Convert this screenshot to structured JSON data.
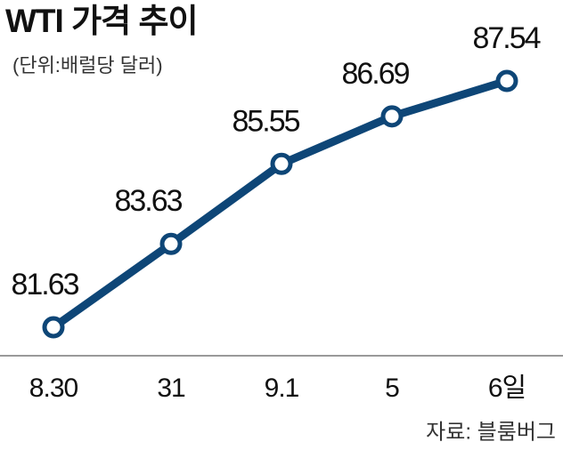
{
  "chart_data": {
    "type": "line",
    "title": "WTI 가격 추이",
    "subtitle": "(단위:배럴당 달러)",
    "source": "자료: 블룸버그",
    "categories": [
      "8.30",
      "31",
      "9.1",
      "5",
      "6일"
    ],
    "values": [
      81.63,
      83.63,
      85.55,
      86.69,
      87.54
    ],
    "color": "#0e4677"
  }
}
